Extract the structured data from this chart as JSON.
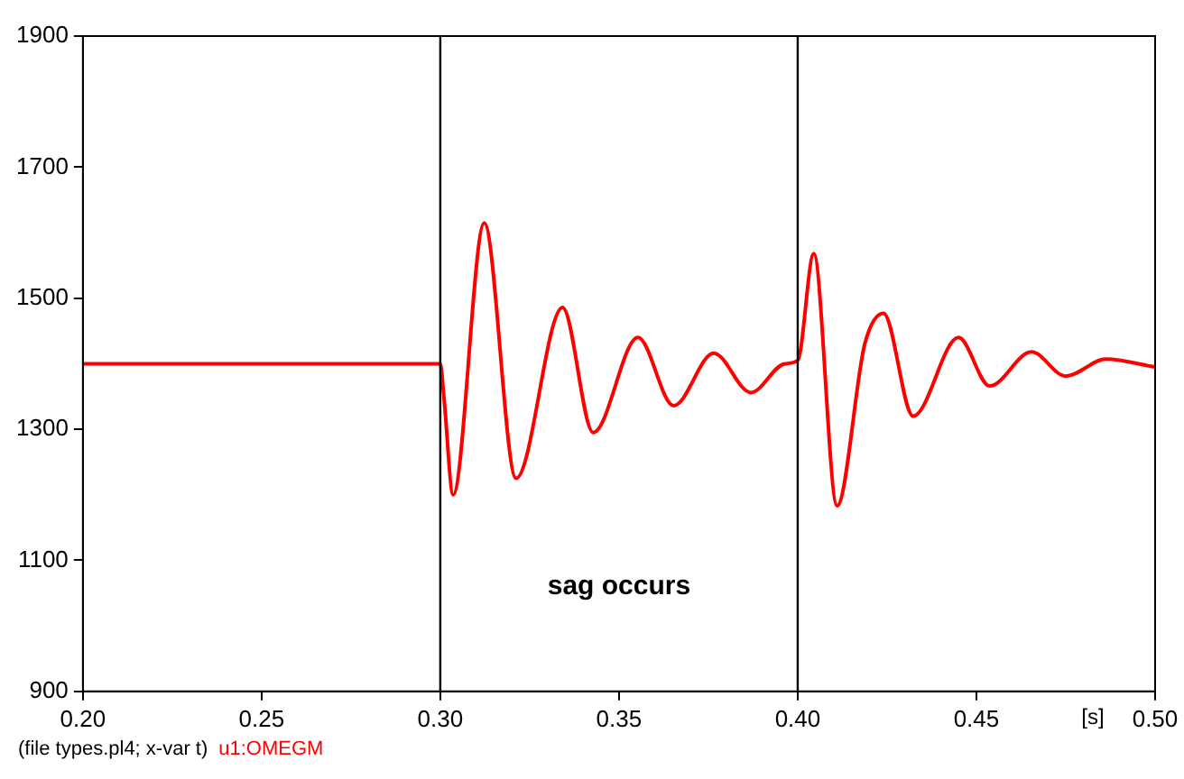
{
  "chart_data": {
    "type": "line",
    "xlabel": "[s]",
    "xlim": [
      0.2,
      0.5
    ],
    "xticks": [
      {
        "value": 0.2,
        "label": "0.20"
      },
      {
        "value": 0.25,
        "label": "0.25"
      },
      {
        "value": 0.3,
        "label": "0.30"
      },
      {
        "value": 0.35,
        "label": "0.35"
      },
      {
        "value": 0.4,
        "label": "0.40"
      },
      {
        "value": 0.45,
        "label": "0.45"
      },
      {
        "value": 0.5,
        "label": "0.50"
      }
    ],
    "ylim": [
      900,
      1900
    ],
    "yticks": [
      900,
      1100,
      1300,
      1500,
      1700,
      1900
    ],
    "grid": false,
    "marker": "none",
    "line_style": "solid",
    "series": [
      {
        "name": "u1:OMEGM",
        "color": "#ff0000",
        "x": [
          0.2,
          0.25,
          0.3,
          0.301,
          0.3036,
          0.3123,
          0.3212,
          0.3342,
          0.3428,
          0.3553,
          0.3653,
          0.3765,
          0.3869,
          0.3964,
          0.4,
          0.4045,
          0.411,
          0.4188,
          0.424,
          0.4323,
          0.445,
          0.4537,
          0.4654,
          0.475,
          0.4862,
          0.5
        ],
        "values": [
          1400,
          1400,
          1400,
          1350,
          1200,
          1615,
          1225,
          1486,
          1295,
          1440,
          1336,
          1416,
          1356,
          1400,
          1405,
          1568,
          1183,
          1431,
          1477,
          1320,
          1440,
          1366,
          1418,
          1381,
          1407,
          1395
        ]
      }
    ],
    "ref_lines": [
      {
        "axis": "x",
        "value": 0.3,
        "color": "#000000"
      },
      {
        "axis": "x",
        "value": 0.4,
        "color": "#000000"
      }
    ],
    "annotations": [
      "sag occurs",
      "(file types.pl4; x-var t)"
    ]
  }
}
